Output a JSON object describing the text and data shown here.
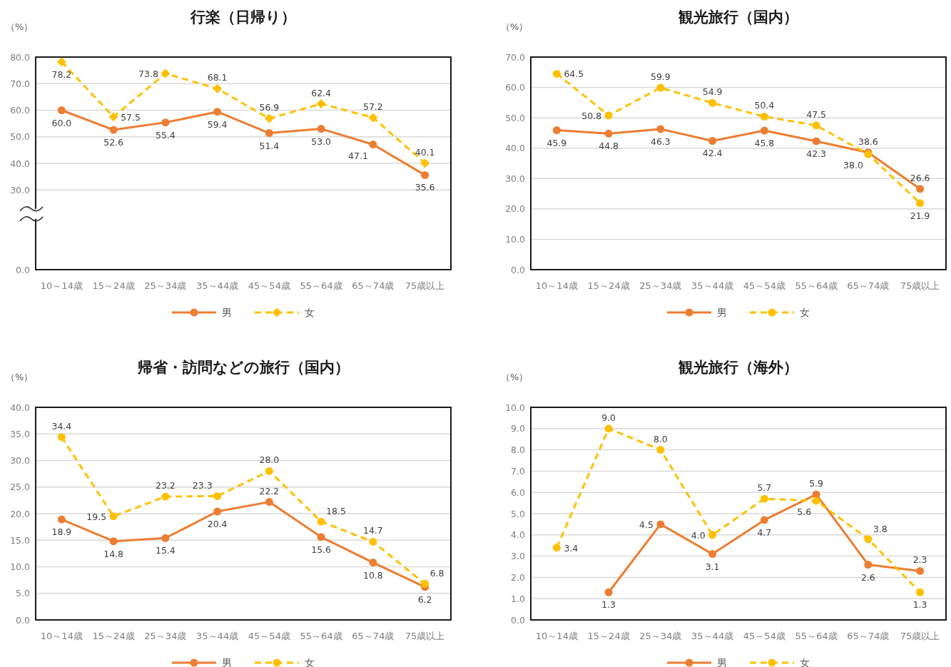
{
  "chart_data": [
    {
      "type": "line",
      "title": "行楽（日帰り）",
      "ylabel": "（%）",
      "categories": [
        "10～14歳",
        "15～24歳",
        "25～34歳",
        "35～44歳",
        "45～54歳",
        "55～64歳",
        "65～74歳",
        "75歳以上"
      ],
      "series": [
        {
          "name": "男",
          "color": "#ed7d31",
          "line_style": "solid",
          "marker": "circle",
          "values": [
            60.0,
            52.6,
            55.4,
            59.4,
            51.4,
            53.0,
            47.1,
            35.6
          ],
          "value_labels": [
            "60.0",
            "52.6",
            "55.4",
            "59.4",
            "51.4",
            "53.0",
            "47.1",
            "35.6"
          ]
        },
        {
          "name": "女",
          "color": "#ffc000",
          "line_style": "dashed",
          "marker": "diamond",
          "values": [
            78.2,
            57.5,
            73.8,
            68.1,
            56.9,
            62.4,
            57.2,
            40.1
          ],
          "value_labels": [
            "78.2",
            "57.5",
            "73.8",
            "68.1",
            "56.9",
            "62.4",
            "57.2",
            "40.1"
          ]
        }
      ],
      "ylim": [
        0,
        80
      ],
      "yticks": [
        {
          "value": 0,
          "label": "0.0"
        },
        {
          "value": 30,
          "label": "30.0"
        },
        {
          "value": 40,
          "label": "40.0"
        },
        {
          "value": 50,
          "label": "50.0"
        },
        {
          "value": 60,
          "label": "60.0"
        },
        {
          "value": 70,
          "label": "70.0"
        },
        {
          "value": 80,
          "label": "80.0"
        }
      ],
      "grid": "y",
      "legend": "bottom"
    },
    {
      "type": "line",
      "title": "観光旅行（国内）",
      "ylabel": "（%）",
      "categories": [
        "10～14歳",
        "15～24歳",
        "25～34歳",
        "35～44歳",
        "45～54歳",
        "55～64歳",
        "65～74歳",
        "75歳以上"
      ],
      "series": [
        {
          "name": "男",
          "color": "#ed7d31",
          "line_style": "solid",
          "marker": "circle",
          "values": [
            45.9,
            44.8,
            46.3,
            42.4,
            45.8,
            42.3,
            38.6,
            26.6
          ],
          "value_labels": [
            "45.9",
            "44.8",
            "46.3",
            "42.4",
            "45.8",
            "42.3",
            "38.6",
            "26.6"
          ]
        },
        {
          "name": "女",
          "color": "#ffc000",
          "line_style": "dashed",
          "marker": "circle",
          "values": [
            64.5,
            50.8,
            59.9,
            54.9,
            50.4,
            47.5,
            38.0,
            21.9
          ],
          "value_labels": [
            "64.5",
            "50.8",
            "59.9",
            "54.9",
            "50.4",
            "47.5",
            "38.0",
            "21.9"
          ]
        }
      ],
      "ylim": [
        0,
        70
      ],
      "yticks": [
        {
          "value": 0,
          "label": "0.0"
        },
        {
          "value": 10,
          "label": "10.0"
        },
        {
          "value": 20,
          "label": "20.0"
        },
        {
          "value": 30,
          "label": "30.0"
        },
        {
          "value": 40,
          "label": "40.0"
        },
        {
          "value": 50,
          "label": "50.0"
        },
        {
          "value": 60,
          "label": "60.0"
        },
        {
          "value": 70,
          "label": "70.0"
        }
      ],
      "grid": "y",
      "legend": "bottom"
    },
    {
      "type": "line",
      "title": "帰省・訪問などの旅行（国内）",
      "ylabel": "（%）",
      "categories": [
        "10～14歳",
        "15～24歳",
        "25～34歳",
        "35～44歳",
        "45～54歳",
        "55～64歳",
        "65～74歳",
        "75歳以上"
      ],
      "series": [
        {
          "name": "男",
          "color": "#ed7d31",
          "line_style": "solid",
          "marker": "circle",
          "values": [
            18.9,
            14.8,
            15.4,
            20.4,
            22.2,
            15.6,
            10.8,
            6.2
          ],
          "value_labels": [
            "18.9",
            "14.8",
            "15.4",
            "20.4",
            "22.2",
            "15.6",
            "10.8",
            "6.2"
          ]
        },
        {
          "name": "女",
          "color": "#ffc000",
          "line_style": "dashed",
          "marker": "circle",
          "values": [
            34.4,
            19.5,
            23.2,
            23.3,
            28.0,
            18.5,
            14.7,
            6.8
          ],
          "value_labels": [
            "34.4",
            "19.5",
            "23.2",
            "23.3",
            "28.0",
            "18.5",
            "14.7",
            "6.8"
          ]
        }
      ],
      "ylim": [
        0,
        40
      ],
      "yticks": [
        {
          "value": 0,
          "label": "0.0"
        },
        {
          "value": 5,
          "label": "5.0"
        },
        {
          "value": 10,
          "label": "10.0"
        },
        {
          "value": 15,
          "label": "15.0"
        },
        {
          "value": 20,
          "label": "20.0"
        },
        {
          "value": 25,
          "label": "25.0"
        },
        {
          "value": 30,
          "label": "30.0"
        },
        {
          "value": 35,
          "label": "35.0"
        },
        {
          "value": 40,
          "label": "40.0"
        }
      ],
      "grid": "y",
      "legend": "bottom"
    },
    {
      "type": "line",
      "title": "観光旅行（海外）",
      "ylabel": "（%）",
      "categories": [
        "10～14歳",
        "15～24歳",
        "25～34歳",
        "35～44歳",
        "45～54歳",
        "55～64歳",
        "65～74歳",
        "75歳以上"
      ],
      "series": [
        {
          "name": "男",
          "color": "#ed7d31",
          "line_style": "solid",
          "marker": "circle",
          "values": [
            null,
            1.3,
            4.5,
            3.1,
            4.7,
            5.9,
            2.6,
            2.3
          ],
          "value_labels": [
            null,
            "1.3",
            "4.5",
            "3.1",
            "4.7",
            "5.9",
            "2.6",
            "2.3"
          ]
        },
        {
          "name": "女",
          "color": "#ffc000",
          "line_style": "dashed",
          "marker": "circle",
          "values": [
            3.4,
            9.0,
            8.0,
            4.0,
            5.7,
            5.6,
            3.8,
            1.3
          ],
          "value_labels": [
            "3.4",
            "9.0",
            "8.0",
            "4.0",
            "5.7",
            "5.6",
            "3.8",
            "1.3"
          ]
        }
      ],
      "ylim": [
        0,
        10
      ],
      "yticks": [
        {
          "value": 0,
          "label": "0.0"
        },
        {
          "value": 1,
          "label": "1.0"
        },
        {
          "value": 2,
          "label": "2.0"
        },
        {
          "value": 3,
          "label": "3.0"
        },
        {
          "value": 4,
          "label": "4.0"
        },
        {
          "value": 5,
          "label": "5.0"
        },
        {
          "value": 6,
          "label": "6.0"
        },
        {
          "value": 7,
          "label": "7.0"
        },
        {
          "value": 8,
          "label": "8.0"
        },
        {
          "value": 9,
          "label": "9.0"
        },
        {
          "value": 10,
          "label": "10.0"
        }
      ],
      "grid": "y",
      "legend": "bottom"
    }
  ]
}
